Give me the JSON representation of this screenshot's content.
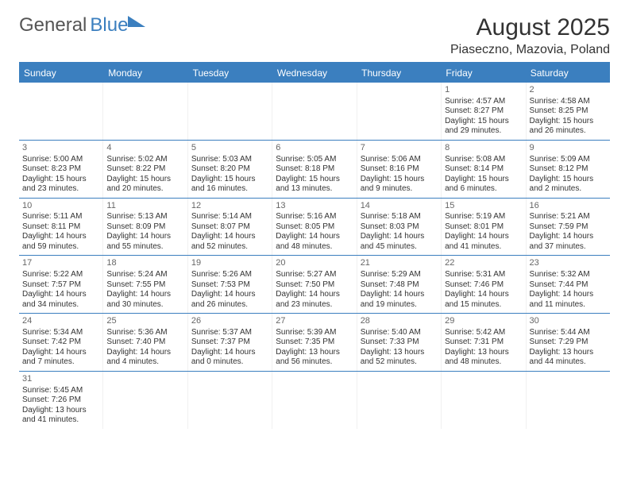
{
  "logo": {
    "part1": "General",
    "part2": "Blue"
  },
  "title": "August 2025",
  "location": "Piaseczno, Mazovia, Poland",
  "colors": {
    "header_bg": "#3b7fbf",
    "header_text": "#ffffff",
    "row_border": "#3b7fbf",
    "body_text": "#333333",
    "daynum": "#666666",
    "logo_gray": "#555555",
    "logo_blue": "#3b7fbf",
    "page_bg": "#ffffff"
  },
  "typography": {
    "title_fontsize": 30,
    "location_fontsize": 16,
    "dayhead_fontsize": 12,
    "cell_fontsize": 10,
    "font_family": "Arial"
  },
  "day_names": [
    "Sunday",
    "Monday",
    "Tuesday",
    "Wednesday",
    "Thursday",
    "Friday",
    "Saturday"
  ],
  "weeks": [
    [
      null,
      null,
      null,
      null,
      null,
      {
        "n": "1",
        "sr": "Sunrise: 4:57 AM",
        "ss": "Sunset: 8:27 PM",
        "d1": "Daylight: 15 hours",
        "d2": "and 29 minutes."
      },
      {
        "n": "2",
        "sr": "Sunrise: 4:58 AM",
        "ss": "Sunset: 8:25 PM",
        "d1": "Daylight: 15 hours",
        "d2": "and 26 minutes."
      }
    ],
    [
      {
        "n": "3",
        "sr": "Sunrise: 5:00 AM",
        "ss": "Sunset: 8:23 PM",
        "d1": "Daylight: 15 hours",
        "d2": "and 23 minutes."
      },
      {
        "n": "4",
        "sr": "Sunrise: 5:02 AM",
        "ss": "Sunset: 8:22 PM",
        "d1": "Daylight: 15 hours",
        "d2": "and 20 minutes."
      },
      {
        "n": "5",
        "sr": "Sunrise: 5:03 AM",
        "ss": "Sunset: 8:20 PM",
        "d1": "Daylight: 15 hours",
        "d2": "and 16 minutes."
      },
      {
        "n": "6",
        "sr": "Sunrise: 5:05 AM",
        "ss": "Sunset: 8:18 PM",
        "d1": "Daylight: 15 hours",
        "d2": "and 13 minutes."
      },
      {
        "n": "7",
        "sr": "Sunrise: 5:06 AM",
        "ss": "Sunset: 8:16 PM",
        "d1": "Daylight: 15 hours",
        "d2": "and 9 minutes."
      },
      {
        "n": "8",
        "sr": "Sunrise: 5:08 AM",
        "ss": "Sunset: 8:14 PM",
        "d1": "Daylight: 15 hours",
        "d2": "and 6 minutes."
      },
      {
        "n": "9",
        "sr": "Sunrise: 5:09 AM",
        "ss": "Sunset: 8:12 PM",
        "d1": "Daylight: 15 hours",
        "d2": "and 2 minutes."
      }
    ],
    [
      {
        "n": "10",
        "sr": "Sunrise: 5:11 AM",
        "ss": "Sunset: 8:11 PM",
        "d1": "Daylight: 14 hours",
        "d2": "and 59 minutes."
      },
      {
        "n": "11",
        "sr": "Sunrise: 5:13 AM",
        "ss": "Sunset: 8:09 PM",
        "d1": "Daylight: 14 hours",
        "d2": "and 55 minutes."
      },
      {
        "n": "12",
        "sr": "Sunrise: 5:14 AM",
        "ss": "Sunset: 8:07 PM",
        "d1": "Daylight: 14 hours",
        "d2": "and 52 minutes."
      },
      {
        "n": "13",
        "sr": "Sunrise: 5:16 AM",
        "ss": "Sunset: 8:05 PM",
        "d1": "Daylight: 14 hours",
        "d2": "and 48 minutes."
      },
      {
        "n": "14",
        "sr": "Sunrise: 5:18 AM",
        "ss": "Sunset: 8:03 PM",
        "d1": "Daylight: 14 hours",
        "d2": "and 45 minutes."
      },
      {
        "n": "15",
        "sr": "Sunrise: 5:19 AM",
        "ss": "Sunset: 8:01 PM",
        "d1": "Daylight: 14 hours",
        "d2": "and 41 minutes."
      },
      {
        "n": "16",
        "sr": "Sunrise: 5:21 AM",
        "ss": "Sunset: 7:59 PM",
        "d1": "Daylight: 14 hours",
        "d2": "and 37 minutes."
      }
    ],
    [
      {
        "n": "17",
        "sr": "Sunrise: 5:22 AM",
        "ss": "Sunset: 7:57 PM",
        "d1": "Daylight: 14 hours",
        "d2": "and 34 minutes."
      },
      {
        "n": "18",
        "sr": "Sunrise: 5:24 AM",
        "ss": "Sunset: 7:55 PM",
        "d1": "Daylight: 14 hours",
        "d2": "and 30 minutes."
      },
      {
        "n": "19",
        "sr": "Sunrise: 5:26 AM",
        "ss": "Sunset: 7:53 PM",
        "d1": "Daylight: 14 hours",
        "d2": "and 26 minutes."
      },
      {
        "n": "20",
        "sr": "Sunrise: 5:27 AM",
        "ss": "Sunset: 7:50 PM",
        "d1": "Daylight: 14 hours",
        "d2": "and 23 minutes."
      },
      {
        "n": "21",
        "sr": "Sunrise: 5:29 AM",
        "ss": "Sunset: 7:48 PM",
        "d1": "Daylight: 14 hours",
        "d2": "and 19 minutes."
      },
      {
        "n": "22",
        "sr": "Sunrise: 5:31 AM",
        "ss": "Sunset: 7:46 PM",
        "d1": "Daylight: 14 hours",
        "d2": "and 15 minutes."
      },
      {
        "n": "23",
        "sr": "Sunrise: 5:32 AM",
        "ss": "Sunset: 7:44 PM",
        "d1": "Daylight: 14 hours",
        "d2": "and 11 minutes."
      }
    ],
    [
      {
        "n": "24",
        "sr": "Sunrise: 5:34 AM",
        "ss": "Sunset: 7:42 PM",
        "d1": "Daylight: 14 hours",
        "d2": "and 7 minutes."
      },
      {
        "n": "25",
        "sr": "Sunrise: 5:36 AM",
        "ss": "Sunset: 7:40 PM",
        "d1": "Daylight: 14 hours",
        "d2": "and 4 minutes."
      },
      {
        "n": "26",
        "sr": "Sunrise: 5:37 AM",
        "ss": "Sunset: 7:37 PM",
        "d1": "Daylight: 14 hours",
        "d2": "and 0 minutes."
      },
      {
        "n": "27",
        "sr": "Sunrise: 5:39 AM",
        "ss": "Sunset: 7:35 PM",
        "d1": "Daylight: 13 hours",
        "d2": "and 56 minutes."
      },
      {
        "n": "28",
        "sr": "Sunrise: 5:40 AM",
        "ss": "Sunset: 7:33 PM",
        "d1": "Daylight: 13 hours",
        "d2": "and 52 minutes."
      },
      {
        "n": "29",
        "sr": "Sunrise: 5:42 AM",
        "ss": "Sunset: 7:31 PM",
        "d1": "Daylight: 13 hours",
        "d2": "and 48 minutes."
      },
      {
        "n": "30",
        "sr": "Sunrise: 5:44 AM",
        "ss": "Sunset: 7:29 PM",
        "d1": "Daylight: 13 hours",
        "d2": "and 44 minutes."
      }
    ],
    [
      {
        "n": "31",
        "sr": "Sunrise: 5:45 AM",
        "ss": "Sunset: 7:26 PM",
        "d1": "Daylight: 13 hours",
        "d2": "and 41 minutes."
      },
      null,
      null,
      null,
      null,
      null,
      null
    ]
  ]
}
